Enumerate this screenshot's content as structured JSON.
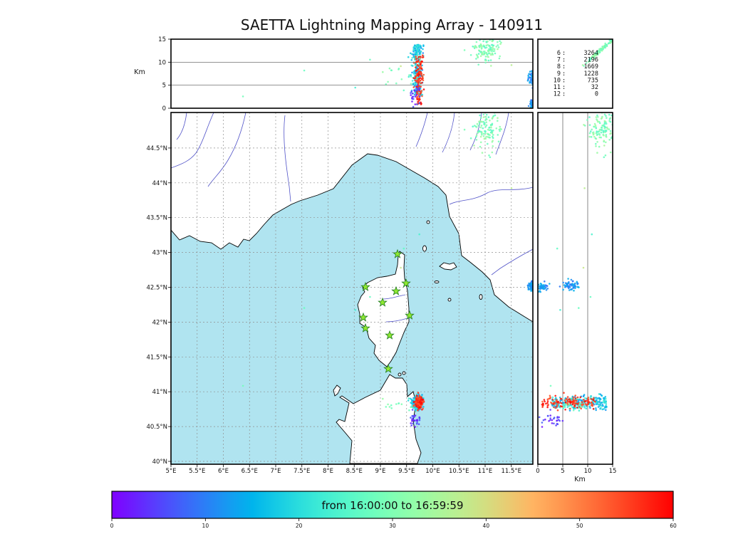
{
  "title": "SAETTA Lightning Mapping Array - 140911",
  "axes": {
    "map": {
      "x_tick_labels": [
        "5°E",
        "5.5°E",
        "6°E",
        "6.5°E",
        "7°E",
        "7.5°E",
        "8°E",
        "8.5°E",
        "9°E",
        "9.5°E",
        "10°E",
        "10.5°E",
        "11°E",
        "11.5°E"
      ],
      "x_tick_values": [
        5,
        5.5,
        6,
        6.5,
        7,
        7.5,
        8,
        8.5,
        9,
        9.5,
        10,
        10.5,
        11,
        11.5
      ],
      "y_tick_labels": [
        "40°N",
        "40.5°N",
        "41°N",
        "41.5°N",
        "42°N",
        "42.5°N",
        "43°N",
        "43.5°N",
        "44°N",
        "44.5°N"
      ],
      "y_tick_values": [
        40,
        40.5,
        41,
        41.5,
        42,
        42.5,
        43,
        43.5,
        44,
        44.5
      ],
      "lon_range": [
        5,
        11.91
      ],
      "lat_range": [
        39.96,
        45.01
      ]
    },
    "alt": {
      "label": "Km",
      "tick_labels": [
        "0",
        "5",
        "10",
        "15"
      ],
      "tick_values": [
        0,
        5,
        10,
        15
      ],
      "range": [
        0,
        15
      ],
      "ref_lines": [
        5,
        10
      ]
    }
  },
  "stats_panel": {
    "rows": [
      {
        "label": "6",
        "value": "3264",
        "highlight": false
      },
      {
        "label": "7",
        "value": "2196",
        "highlight": true
      },
      {
        "label": "8",
        "value": "1669",
        "highlight": false
      },
      {
        "label": "9",
        "value": "1228",
        "highlight": false
      },
      {
        "label": "10",
        "value": "735",
        "highlight": false
      },
      {
        "label": "11",
        "value": "32",
        "highlight": false
      },
      {
        "label": "12",
        "value": "0",
        "highlight": false
      }
    ],
    "highlight_color": "#ee1111",
    "text_color": "#1a1a1a"
  },
  "colorbar": {
    "label": "from 16:00:00 to 16:59:59",
    "tick_labels": [
      "0",
      "10",
      "20",
      "30",
      "40",
      "50",
      "60"
    ],
    "tick_values": [
      0,
      10,
      20,
      30,
      40,
      50,
      60
    ],
    "range_minutes": [
      0,
      60
    ],
    "colormap": "rainbow"
  },
  "colors": {
    "sea": "#b0e4f0",
    "land": "#ffffff",
    "coast": "#000000",
    "river": "#5153c8",
    "grid": "#909090",
    "station_fill": "#8fe832",
    "station_edge": "#1f7a1f"
  },
  "chart_data": {
    "type": "scatter",
    "title": "SAETTA Lightning Mapping Array - 140911",
    "time_window": {
      "start": "16:00:00",
      "end": "16:59:59",
      "colormap": "rainbow",
      "color_scale_minutes": [
        0,
        60
      ]
    },
    "panels": [
      {
        "id": "alt-vs-lon",
        "x": "longitude_deg_E",
        "x_range": [
          5,
          11.91
        ],
        "y": "altitude_km",
        "y_range": [
          0,
          15
        ]
      },
      {
        "id": "plan-view",
        "x": "longitude_deg_E",
        "x_range": [
          5,
          11.91
        ],
        "y": "latitude_deg_N",
        "y_range": [
          39.96,
          45.01
        ]
      },
      {
        "id": "alt-vs-lat",
        "x": "altitude_km",
        "x_range": [
          0,
          15
        ],
        "y": "latitude_deg_N",
        "y_range": [
          39.96,
          45.01
        ]
      },
      {
        "id": "alt-vs-alt-stats",
        "x": "altitude_km",
        "x_range": [
          0,
          15
        ],
        "y": "altitude_km",
        "y_range": [
          0,
          15
        ]
      }
    ],
    "stations": [
      {
        "lon": 9.326,
        "lat": 42.976
      },
      {
        "lon": 8.714,
        "lat": 42.505
      },
      {
        "lon": 9.49,
        "lat": 42.557
      },
      {
        "lon": 9.041,
        "lat": 42.281
      },
      {
        "lon": 9.299,
        "lat": 42.444
      },
      {
        "lon": 8.673,
        "lat": 42.066
      },
      {
        "lon": 9.558,
        "lat": 42.096
      },
      {
        "lon": 8.714,
        "lat": 41.912
      },
      {
        "lon": 9.177,
        "lat": 41.81
      },
      {
        "lon": 9.15,
        "lat": 41.329
      }
    ],
    "clusters": [
      {
        "id": "olbia-storm-main-blue",
        "n": 270,
        "lon_mean": 9.7,
        "lon_sigma": 0.05,
        "lat_mean": 40.84,
        "lat_sigma": 0.055,
        "alt_km": {
          "dist": "uniform",
          "min": 2.8,
          "max": 13.8
        },
        "time_frac": [
          0.17,
          0.4
        ],
        "in_stats": false
      },
      {
        "id": "olbia-storm-late-red",
        "n": 140,
        "lon_mean": 9.735,
        "lon_sigma": 0.04,
        "lat_mean": 40.85,
        "lat_sigma": 0.045,
        "alt_km": {
          "dist": "uniform",
          "min": 0.8,
          "max": 11.5
        },
        "time_frac": [
          0.88,
          1.0
        ],
        "in_stats": false
      },
      {
        "id": "olbia-low-early-violet",
        "n": 28,
        "lon_mean": 9.64,
        "lon_sigma": 0.07,
        "lat_mean": 40.6,
        "lat_sigma": 0.05,
        "alt_km": {
          "dist": "uniform",
          "min": 0.3,
          "max": 5.0
        },
        "time_frac": [
          0.02,
          0.12
        ],
        "in_stats": false
      },
      {
        "id": "west-mid-cyan-sparse",
        "n": 12,
        "lon_mean": 9.25,
        "lon_sigma": 0.17,
        "lat_mean": 40.83,
        "lat_sigma": 0.06,
        "alt_km": {
          "dist": "uniform",
          "min": 4,
          "max": 9.5
        },
        "time_frac": [
          0.44,
          0.55
        ],
        "in_stats": false
      },
      {
        "id": "apennine-storm-teal",
        "n": 120,
        "lon_mean": 11.02,
        "lon_sigma": 0.13,
        "lat_mean": 44.78,
        "lat_sigma": 0.14,
        "alt_km": {
          "dist": "gauss",
          "mean": 12.6,
          "sigma": 1.3
        },
        "time_frac": [
          0.42,
          0.58
        ],
        "in_stats": true
      },
      {
        "id": "east-edge-blue-mid",
        "n": 60,
        "lon_mean": 11.9,
        "lon_sigma": 0.04,
        "lat_mean": 42.52,
        "lat_sigma": 0.035,
        "alt_km": {
          "dist": "gauss",
          "mean": 6.8,
          "sigma": 0.8
        },
        "time_frac": [
          0.14,
          0.26
        ],
        "in_stats": false
      },
      {
        "id": "east-edge-blue-low",
        "n": 45,
        "lon_mean": 11.9,
        "lon_sigma": 0.035,
        "lat_mean": 42.5,
        "lat_sigma": 0.03,
        "alt_km": {
          "dist": "gauss",
          "mean": 0.9,
          "sigma": 0.5
        },
        "time_frac": [
          0.14,
          0.26
        ],
        "in_stats": false
      },
      {
        "id": "stray-noise",
        "n": 8,
        "lon_mean": 9.5,
        "lon_sigma": 1.0,
        "lat_mean": 42.5,
        "lat_sigma": 1.0,
        "alt_km": {
          "dist": "uniform",
          "min": 2,
          "max": 12
        },
        "time_frac": [
          0.3,
          0.8
        ],
        "in_stats": false
      }
    ]
  }
}
